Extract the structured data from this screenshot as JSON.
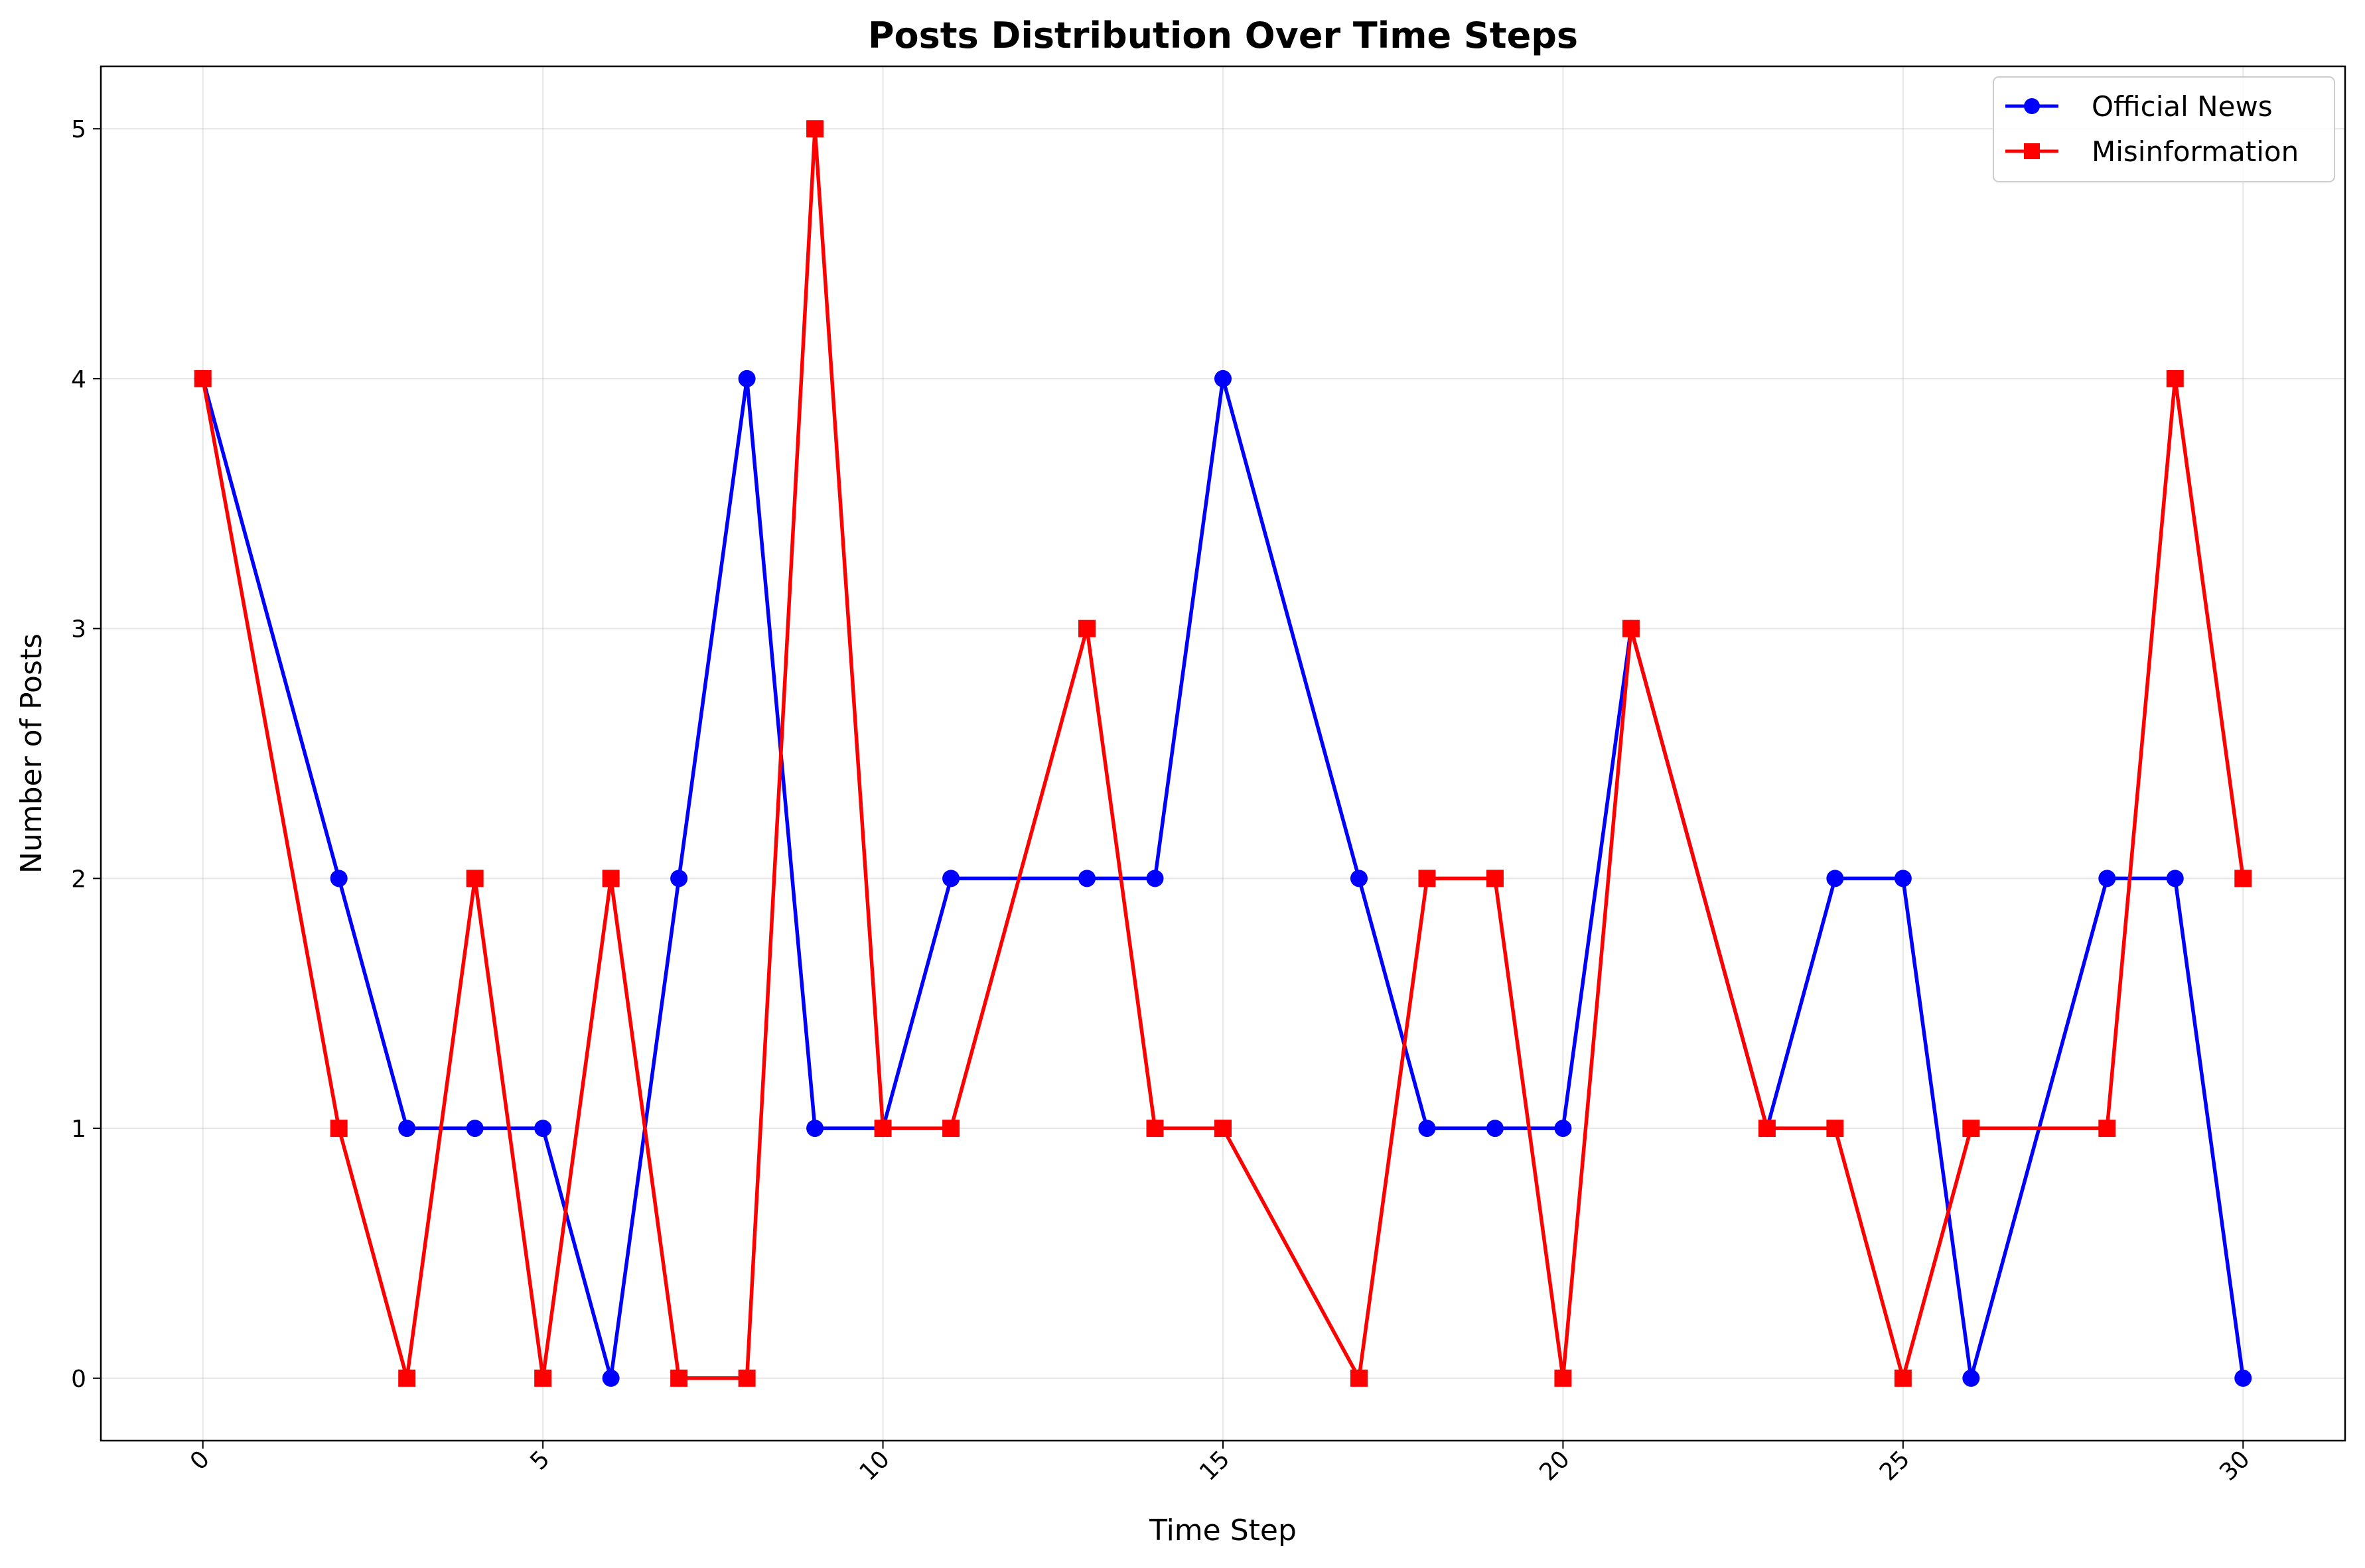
{
  "chart_data": {
    "type": "line",
    "title": "Posts Distribution Over Time Steps",
    "xlabel": "Time Step",
    "ylabel": "Number of Posts",
    "xlim": [
      -1.5,
      31.5
    ],
    "ylim": [
      -0.25,
      5.25
    ],
    "xticks": [
      0,
      5,
      10,
      15,
      20,
      25,
      30
    ],
    "xtick_labels": [
      "0",
      "5",
      "10",
      "15",
      "20",
      "25",
      "30"
    ],
    "xtick_rotation": 45,
    "yticks": [
      0,
      1,
      2,
      3,
      4,
      5
    ],
    "ytick_labels": [
      "0",
      "1",
      "2",
      "3",
      "4",
      "5"
    ],
    "grid": true,
    "legend_position": "top-right",
    "series": [
      {
        "name": "Official News",
        "color": "#0000ff",
        "marker": "circle",
        "x": [
          0,
          2,
          3,
          4,
          5,
          6,
          7,
          8,
          9,
          10,
          11,
          13,
          14,
          15,
          17,
          18,
          19,
          20,
          21,
          23,
          24,
          25,
          26,
          28,
          29,
          30
        ],
        "values": [
          4,
          2,
          1,
          1,
          1,
          0,
          2,
          4,
          1,
          1,
          2,
          2,
          2,
          4,
          2,
          1,
          1,
          1,
          3,
          1,
          2,
          2,
          0,
          2,
          2,
          0
        ]
      },
      {
        "name": "Misinformation",
        "color": "#ff0000",
        "marker": "square",
        "x": [
          0,
          2,
          3,
          4,
          5,
          6,
          7,
          8,
          9,
          10,
          11,
          13,
          14,
          15,
          17,
          18,
          19,
          20,
          21,
          23,
          24,
          25,
          26,
          28,
          29,
          30
        ],
        "values": [
          4,
          1,
          0,
          2,
          0,
          2,
          0,
          0,
          5,
          1,
          1,
          3,
          1,
          1,
          0,
          2,
          2,
          0,
          3,
          1,
          1,
          0,
          1,
          1,
          4,
          2
        ]
      }
    ]
  }
}
